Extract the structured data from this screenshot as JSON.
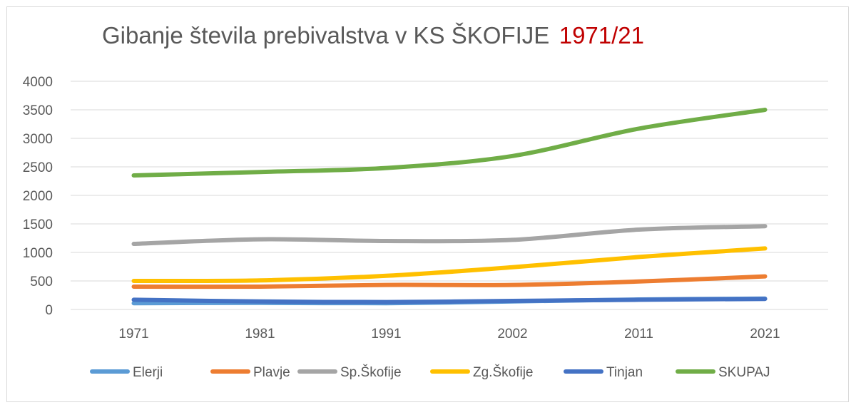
{
  "chart_data": {
    "type": "line",
    "title": "Gibanje števila prebivalstva v KS ŠKOFIJE",
    "title_accent": "1971/21",
    "title_accent_color": "#c00000",
    "xlabel": "",
    "ylabel": "",
    "categories": [
      "1971",
      "1981",
      "1991",
      "2002",
      "2011",
      "2021"
    ],
    "ylim": [
      0,
      4000
    ],
    "yticks": [
      0,
      500,
      1000,
      1500,
      2000,
      2500,
      3000,
      3500,
      4000
    ],
    "grid": true,
    "legend_position": "bottom",
    "series": [
      {
        "name": "Elerji",
        "color": "#5b9bd5",
        "values": [
          110,
          115,
          110,
          140,
          175,
          190
        ]
      },
      {
        "name": "Plavje",
        "color": "#ed7d31",
        "values": [
          400,
          400,
          430,
          430,
          490,
          580
        ]
      },
      {
        "name": "Sp.Škofije",
        "color": "#a5a5a5",
        "values": [
          1150,
          1230,
          1200,
          1220,
          1400,
          1460
        ]
      },
      {
        "name": "Zg.Škofije",
        "color": "#ffc000",
        "values": [
          500,
          510,
          590,
          740,
          920,
          1070
        ]
      },
      {
        "name": "Tinjan",
        "color": "#4472c4",
        "values": [
          170,
          140,
          130,
          150,
          170,
          185
        ]
      },
      {
        "name": "SKUPAJ",
        "color": "#70ad47",
        "values": [
          2350,
          2410,
          2480,
          2690,
          3170,
          3500
        ]
      }
    ]
  }
}
